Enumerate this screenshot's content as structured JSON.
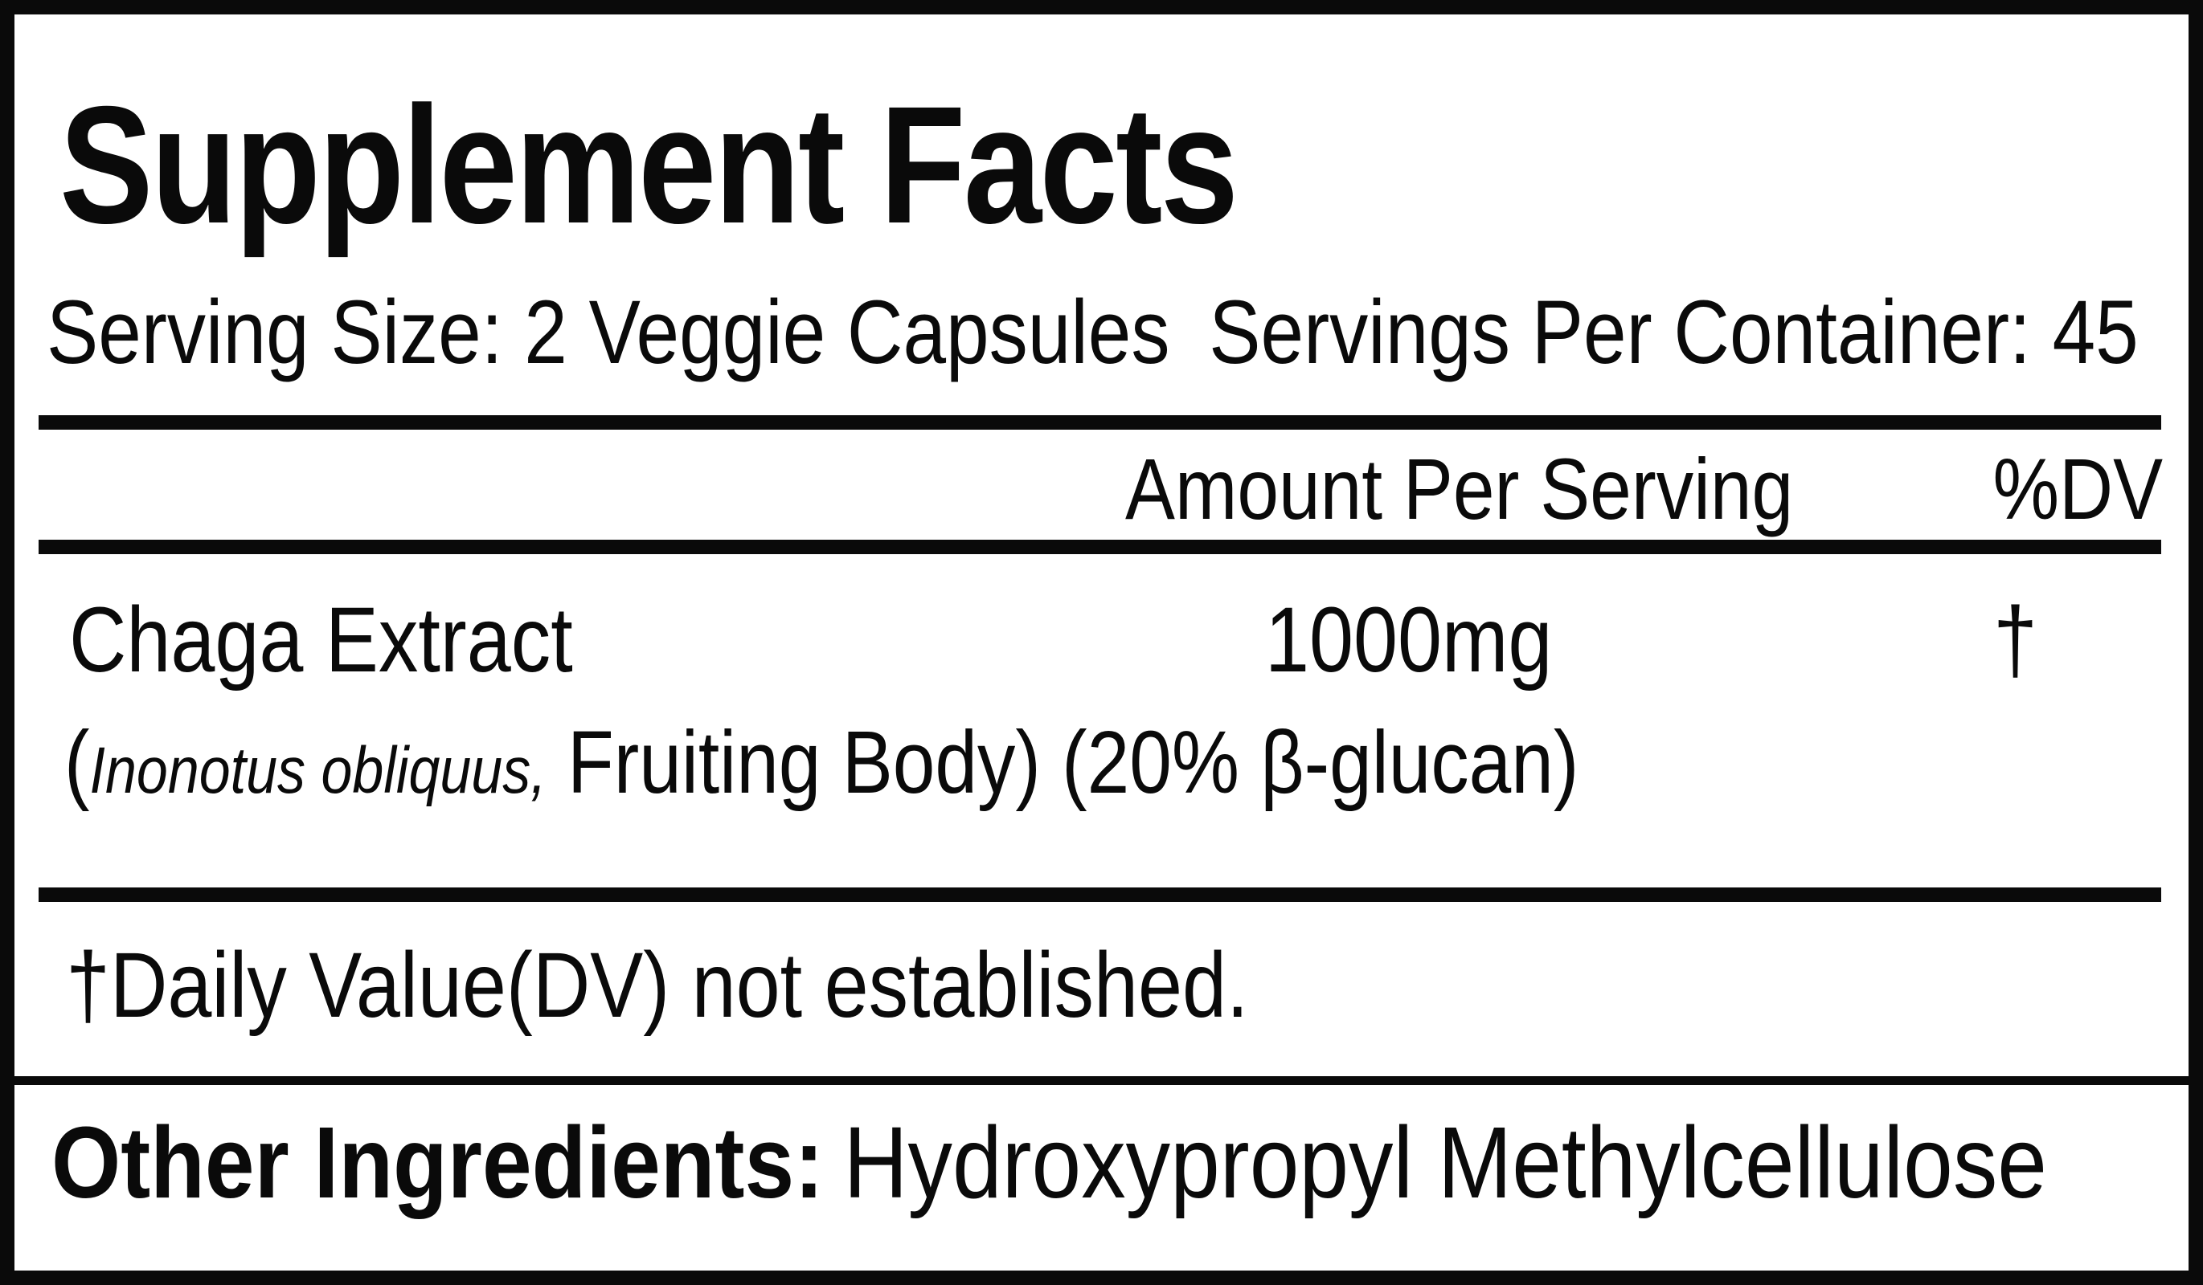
{
  "colors": {
    "ink": "#0a0a0a",
    "paper": "#ffffff"
  },
  "panel": {
    "title": "Supplement Facts",
    "serving_line": {
      "serving_size": "Serving Size: 2 Veggie Capsules",
      "servings_per_container": "Servings Per Container: 45"
    },
    "header": {
      "amount_per_serving": "Amount Per Serving",
      "percent_dv": "%DV"
    },
    "rows": [
      {
        "name": "Chaga Extract",
        "detail_open_paren": "(",
        "latin_name": "Inonotus obliquus,",
        "detail_rest": " Fruiting Body) (20% β-glucan)",
        "amount": "1000mg",
        "dv": "†"
      }
    ],
    "footnote": "†Daily Value(DV) not established.",
    "other_ingredients": {
      "label": "Other Ingredients:",
      "value": "Hydroxypropyl Methylcellulose"
    }
  }
}
